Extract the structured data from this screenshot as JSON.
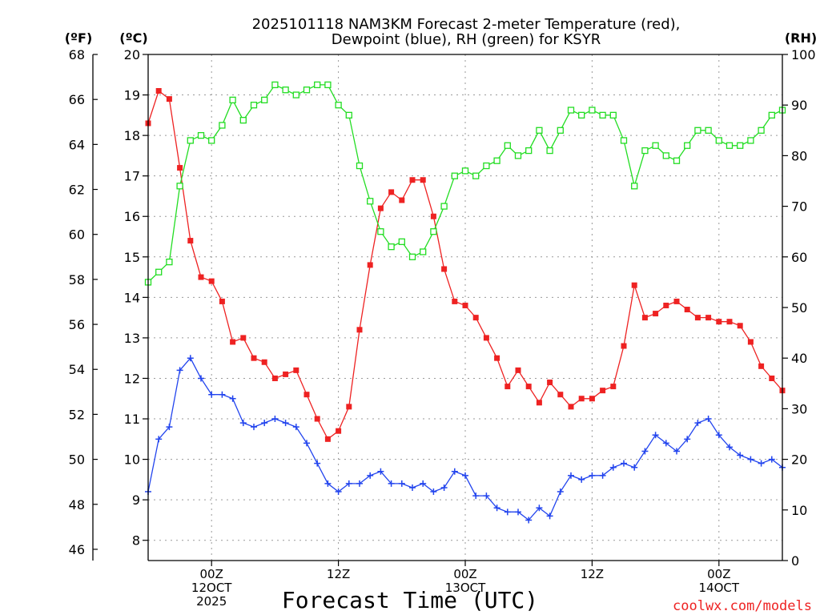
{
  "chart_data": {
    "type": "line",
    "title_line1": "2025101118 NAM3KM Forecast 2-meter Temperature (red),",
    "title_line2": "Dewpoint (blue), RH (green) for KSYR",
    "xlabel": "Forecast Time (UTC)",
    "credit": "coolwx.com/models",
    "unit_label_f": "(ºF)",
    "unit_label_c": "(ºC)",
    "unit_label_rh": "(RH)",
    "x_hours_range": [
      0,
      60
    ],
    "x_ticks": [
      {
        "hour": 6,
        "label1": "00Z",
        "label2": "12OCT",
        "label3": "2025"
      },
      {
        "hour": 18,
        "label1": "12Z",
        "label2": "",
        "label3": ""
      },
      {
        "hour": 30,
        "label1": "00Z",
        "label2": "13OCT",
        "label3": ""
      },
      {
        "hour": 42,
        "label1": "12Z",
        "label2": "",
        "label3": ""
      },
      {
        "hour": 54,
        "label1": "00Z",
        "label2": "14OCT",
        "label3": ""
      }
    ],
    "y_celsius_range": [
      7.5,
      20
    ],
    "y_celsius_ticks": [
      "8",
      "9",
      "10",
      "11",
      "12",
      "13",
      "14",
      "15",
      "16",
      "17",
      "18",
      "19",
      "20"
    ],
    "y_fahrenheit_ticks": [
      "46",
      "48",
      "50",
      "52",
      "54",
      "56",
      "58",
      "60",
      "62",
      "64",
      "66",
      "68"
    ],
    "y_rh_range": [
      0,
      100
    ],
    "y_rh_ticks": [
      "0",
      "10",
      "20",
      "30",
      "40",
      "50",
      "60",
      "70",
      "80",
      "90",
      "100"
    ],
    "series": [
      {
        "name": "2-meter Temperature (°C)",
        "color": "#ee2222",
        "marker": "filled-square",
        "axis": "celsius",
        "values": [
          18.3,
          19.1,
          18.9,
          17.2,
          15.4,
          14.5,
          14.4,
          13.9,
          12.9,
          13.0,
          12.5,
          12.4,
          12.0,
          12.1,
          12.2,
          11.6,
          11.0,
          10.5,
          10.7,
          11.3,
          13.2,
          14.8,
          16.2,
          16.6,
          16.4,
          16.9,
          16.9,
          16.0,
          14.7,
          13.9,
          13.8,
          13.5,
          13.0,
          12.5,
          11.8,
          12.2,
          11.8,
          11.4,
          11.9,
          11.6,
          11.3,
          11.5,
          11.5,
          11.7,
          11.8,
          12.8,
          14.3,
          13.5,
          13.6,
          13.8,
          13.9,
          13.7,
          13.5,
          13.5,
          13.4,
          13.4,
          13.3,
          12.9,
          12.3,
          12.0,
          11.7
        ]
      },
      {
        "name": "2-meter Dewpoint (°C)",
        "color": "#2244ee",
        "marker": "plus",
        "axis": "celsius",
        "values": [
          9.2,
          10.5,
          10.8,
          12.2,
          12.5,
          12.0,
          11.6,
          11.6,
          11.5,
          10.9,
          10.8,
          10.9,
          11.0,
          10.9,
          10.8,
          10.4,
          9.9,
          9.4,
          9.2,
          9.4,
          9.4,
          9.6,
          9.7,
          9.4,
          9.4,
          9.3,
          9.4,
          9.2,
          9.3,
          9.7,
          9.6,
          9.1,
          9.1,
          8.8,
          8.7,
          8.7,
          8.5,
          8.8,
          8.6,
          9.2,
          9.6,
          9.5,
          9.6,
          9.6,
          9.8,
          9.9,
          9.8,
          10.2,
          10.6,
          10.4,
          10.2,
          10.5,
          10.9,
          11.0,
          10.6,
          10.3,
          10.1,
          10.0,
          9.9,
          10.0,
          9.8
        ]
      },
      {
        "name": "Relative Humidity (%)",
        "color": "#22dd22",
        "marker": "open-square",
        "axis": "rh",
        "values": [
          55,
          57,
          59,
          74,
          83,
          84,
          83,
          86,
          91,
          87,
          90,
          91,
          94,
          93,
          92,
          93,
          94,
          94,
          90,
          88,
          78,
          71,
          65,
          62,
          63,
          60,
          61,
          65,
          70,
          76,
          77,
          76,
          78,
          79,
          82,
          80,
          81,
          85,
          81,
          85,
          89,
          88,
          89,
          88,
          88,
          83,
          74,
          81,
          82,
          80,
          79,
          82,
          85,
          85,
          83,
          82,
          82,
          83,
          85,
          88,
          89
        ]
      }
    ]
  }
}
